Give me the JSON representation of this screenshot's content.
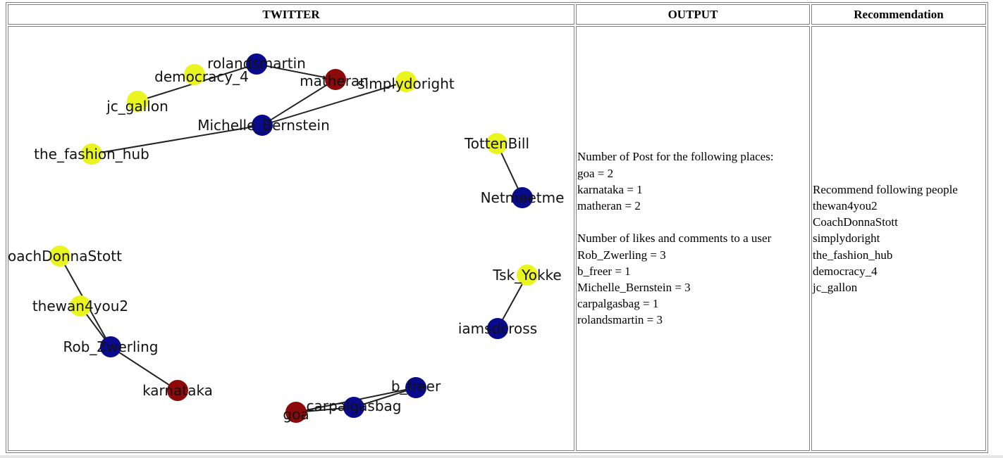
{
  "headers": {
    "twitter": "TWITTER",
    "output": "OUTPUT",
    "recommendation": "Recommendation"
  },
  "colors": {
    "user": "#0a0a8c",
    "follow": "#eaf51f",
    "place": "#8c0a0a",
    "edge": "#222222"
  },
  "graph": {
    "nodes": [
      {
        "id": "rolandsmartin",
        "label": "rolandsmartin",
        "kind": "user"
      },
      {
        "id": "democracy_4",
        "label": "democracy_4",
        "kind": "follow"
      },
      {
        "id": "matheran",
        "label": "matheran",
        "kind": "place"
      },
      {
        "id": "simplydoright",
        "label": "simplydoright",
        "kind": "follow"
      },
      {
        "id": "jc_gallon",
        "label": "jc_gallon",
        "kind": "follow"
      },
      {
        "id": "Michelle_Bernstein",
        "label": "Michelle_Bernstein",
        "kind": "user"
      },
      {
        "id": "the_fashion_hub",
        "label": "the_fashion_hub",
        "kind": "follow"
      },
      {
        "id": "TottenBill",
        "label": "TottenBill",
        "kind": "follow"
      },
      {
        "id": "Netmeetme",
        "label": "Netmeetme",
        "kind": "user"
      },
      {
        "id": "CoachDonnaStott",
        "label": "CoachDonnaStott",
        "kind": "follow"
      },
      {
        "id": "Tsk_Yokke",
        "label": "Tsk_Yokke",
        "kind": "follow"
      },
      {
        "id": "thewan4you2",
        "label": "thewan4you2",
        "kind": "follow"
      },
      {
        "id": "iamsdcross",
        "label": "iamsdcross",
        "kind": "user"
      },
      {
        "id": "Rob_Zwerling",
        "label": "Rob_Zwerling",
        "kind": "user"
      },
      {
        "id": "karnataka",
        "label": "karnataka",
        "kind": "place"
      },
      {
        "id": "b_freer",
        "label": "b_freer",
        "kind": "user"
      },
      {
        "id": "carpalgasbag",
        "label": "carpalgasbag",
        "kind": "user"
      },
      {
        "id": "goa",
        "label": "goa",
        "kind": "place"
      }
    ],
    "edges": [
      [
        "jc_gallon",
        "rolandsmartin"
      ],
      [
        "rolandsmartin",
        "matheran"
      ],
      [
        "matheran",
        "Michelle_Bernstein"
      ],
      [
        "Michelle_Bernstein",
        "simplydoright"
      ],
      [
        "Michelle_Bernstein",
        "the_fashion_hub"
      ],
      [
        "TottenBill",
        "Netmeetme"
      ],
      [
        "CoachDonnaStott",
        "Rob_Zwerling"
      ],
      [
        "thewan4you2",
        "Rob_Zwerling"
      ],
      [
        "Rob_Zwerling",
        "karnataka"
      ],
      [
        "Tsk_Yokke",
        "iamsdcross"
      ],
      [
        "goa",
        "carpalgasbag"
      ],
      [
        "carpalgasbag",
        "b_freer"
      ],
      [
        "goa",
        "b_freer"
      ]
    ]
  },
  "output": {
    "places_heading": "Number of Post for the following places:",
    "places": [
      "goa = 2",
      "karnataka = 1",
      "matheran = 2"
    ],
    "users_heading": "Number of likes and comments to a user",
    "users": [
      "Rob_Zwerling = 3",
      "b_freer = 1",
      "Michelle_Bernstein = 3",
      "carpalgasbag = 1",
      "rolandsmartin = 3"
    ]
  },
  "recommendation": {
    "heading": "Recommend following people",
    "people": [
      "thewan4you2",
      "CoachDonnaStott",
      "simplydoright",
      "the_fashion_hub",
      "democracy_4",
      "jc_gallon"
    ]
  }
}
